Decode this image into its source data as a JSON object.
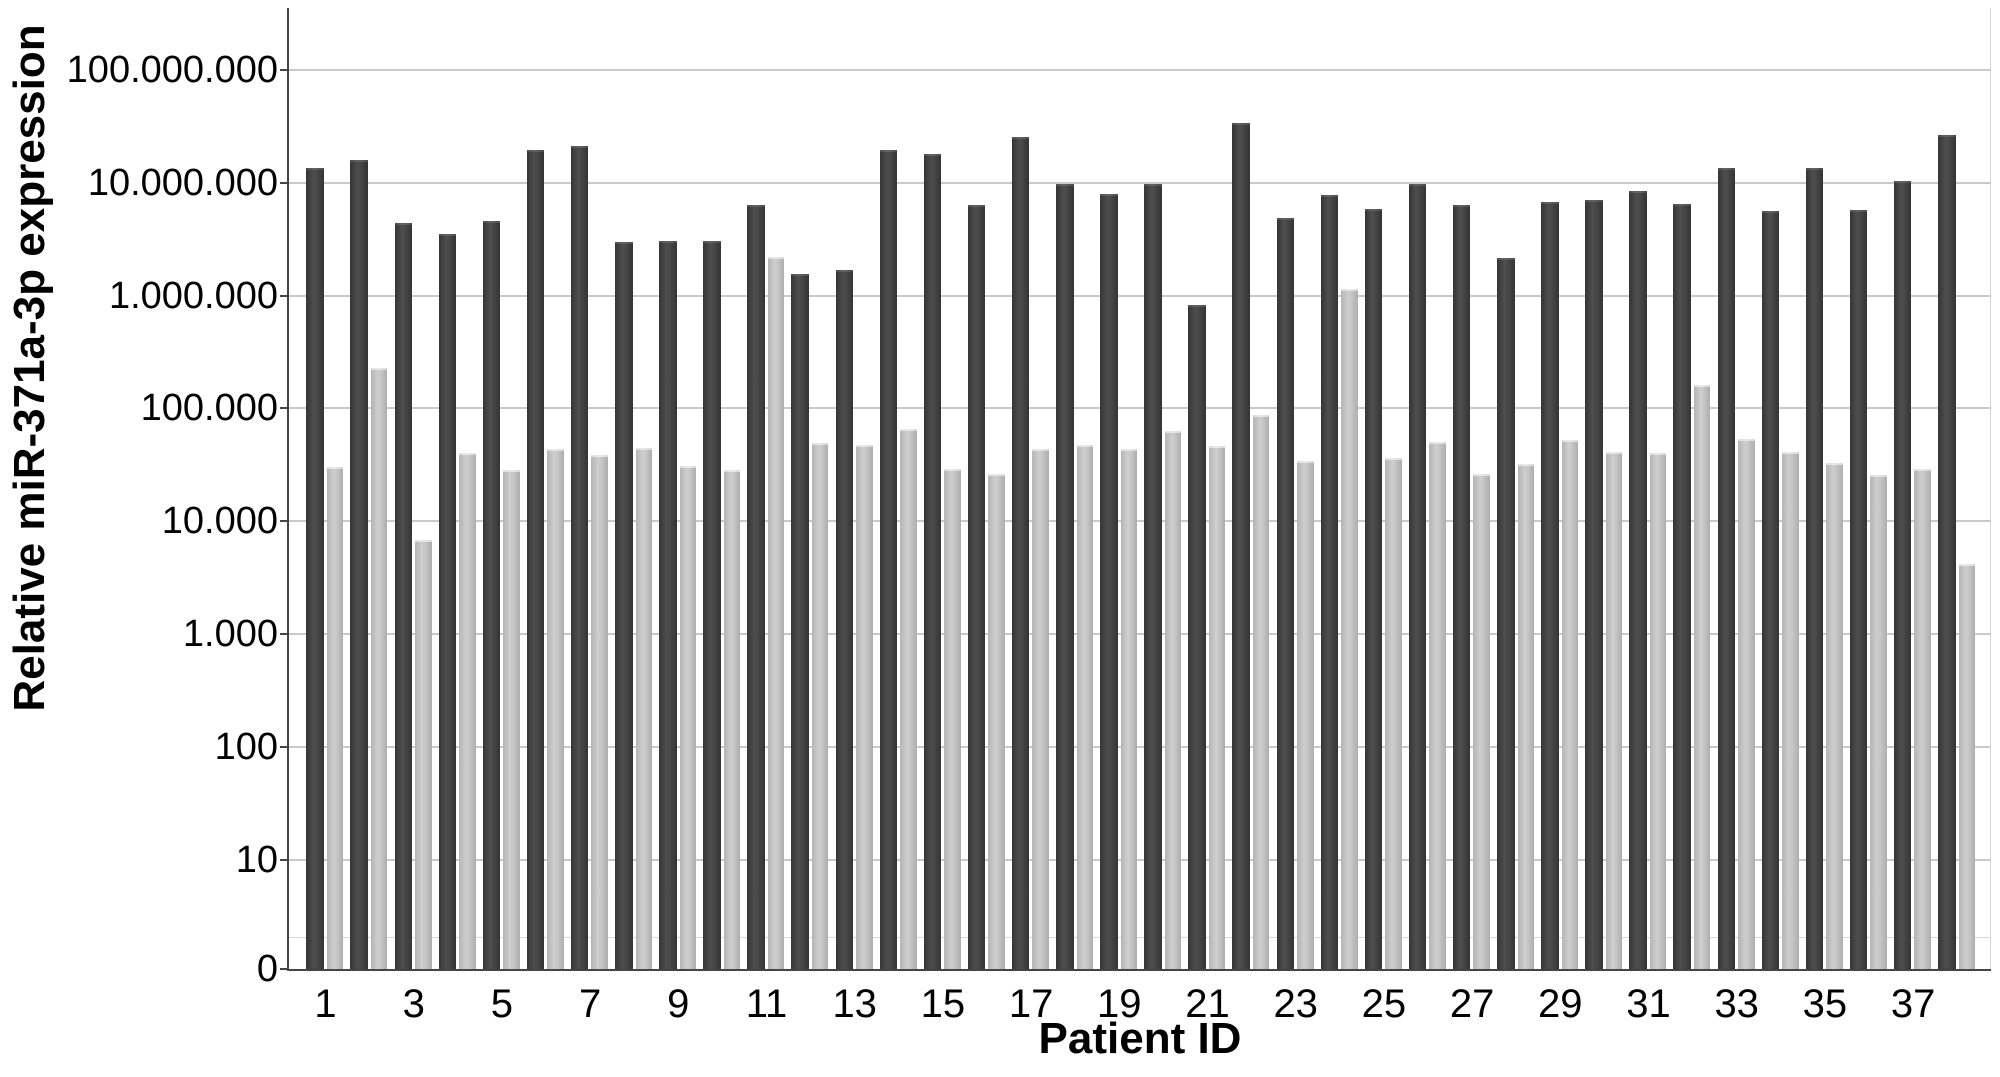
{
  "chart_data": {
    "type": "bar",
    "title": "",
    "xlabel": "Patient ID",
    "ylabel": "Relative miR-371a-3p expression",
    "scale": "log",
    "ylim": [
      0,
      100000000
    ],
    "grid": true,
    "legend": "none",
    "categories": [
      1,
      2,
      3,
      4,
      5,
      6,
      7,
      8,
      9,
      10,
      11,
      12,
      13,
      14,
      15,
      16,
      17,
      18,
      19,
      20,
      21,
      22,
      23,
      24,
      25,
      26,
      27,
      28,
      29,
      30,
      31,
      32,
      33,
      34,
      35,
      36,
      37,
      38
    ],
    "x_tick_labels": [
      "1",
      "3",
      "5",
      "7",
      "9",
      "11",
      "13",
      "15",
      "17",
      "19",
      "21",
      "23",
      "25",
      "27",
      "29",
      "31",
      "33",
      "35",
      "37"
    ],
    "x_tick_positions": [
      1,
      3,
      5,
      7,
      9,
      11,
      13,
      15,
      17,
      19,
      21,
      23,
      25,
      27,
      29,
      31,
      33,
      35,
      37
    ],
    "y_ticks": [
      {
        "label": "0",
        "value": 0
      },
      {
        "label": "10",
        "value": 10
      },
      {
        "label": "100",
        "value": 100
      },
      {
        "label": "1.000",
        "value": 1000
      },
      {
        "label": "10.000",
        "value": 10000
      },
      {
        "label": "100.000",
        "value": 100000
      },
      {
        "label": "1.000.000",
        "value": 1000000
      },
      {
        "label": "10.000.000",
        "value": 10000000
      },
      {
        "label": "100.000.000",
        "value": 100000000
      }
    ],
    "series": [
      {
        "name": "dark-gray-bars",
        "color": "#424242",
        "values": [
          13400000,
          15800000,
          4400000,
          3500000,
          4600000,
          19400000,
          21300000,
          3000000,
          3050000,
          3050000,
          6300000,
          1550000,
          1700000,
          19500000,
          17800000,
          6400000,
          25500000,
          9800000,
          8000000,
          9700000,
          830000,
          33500000,
          4900000,
          7700000,
          5800000,
          9800000,
          6400000,
          2150000,
          6700000,
          7000000,
          8500000,
          6500000,
          13400000,
          5600000,
          13400000,
          5700000,
          10400000,
          26600000
        ]
      },
      {
        "name": "light-gray-bars",
        "color": "#c6c6c6",
        "values": [
          30000,
          230000,
          6800,
          40000,
          28500,
          44000,
          39000,
          45000,
          31000,
          28500,
          2200000,
          49000,
          47500,
          66000,
          29000,
          26500,
          44000,
          47000,
          44000,
          62500,
          46500,
          87000,
          34000,
          1150000,
          36500,
          50500,
          26000,
          32000,
          53000,
          41500,
          40000,
          160000,
          54000,
          41000,
          33000,
          25500,
          29000,
          4200
        ]
      }
    ],
    "colors": {
      "grid": "#c9c9c9",
      "axis": "#454545",
      "text": "#000000",
      "background": "#ffffff"
    }
  }
}
